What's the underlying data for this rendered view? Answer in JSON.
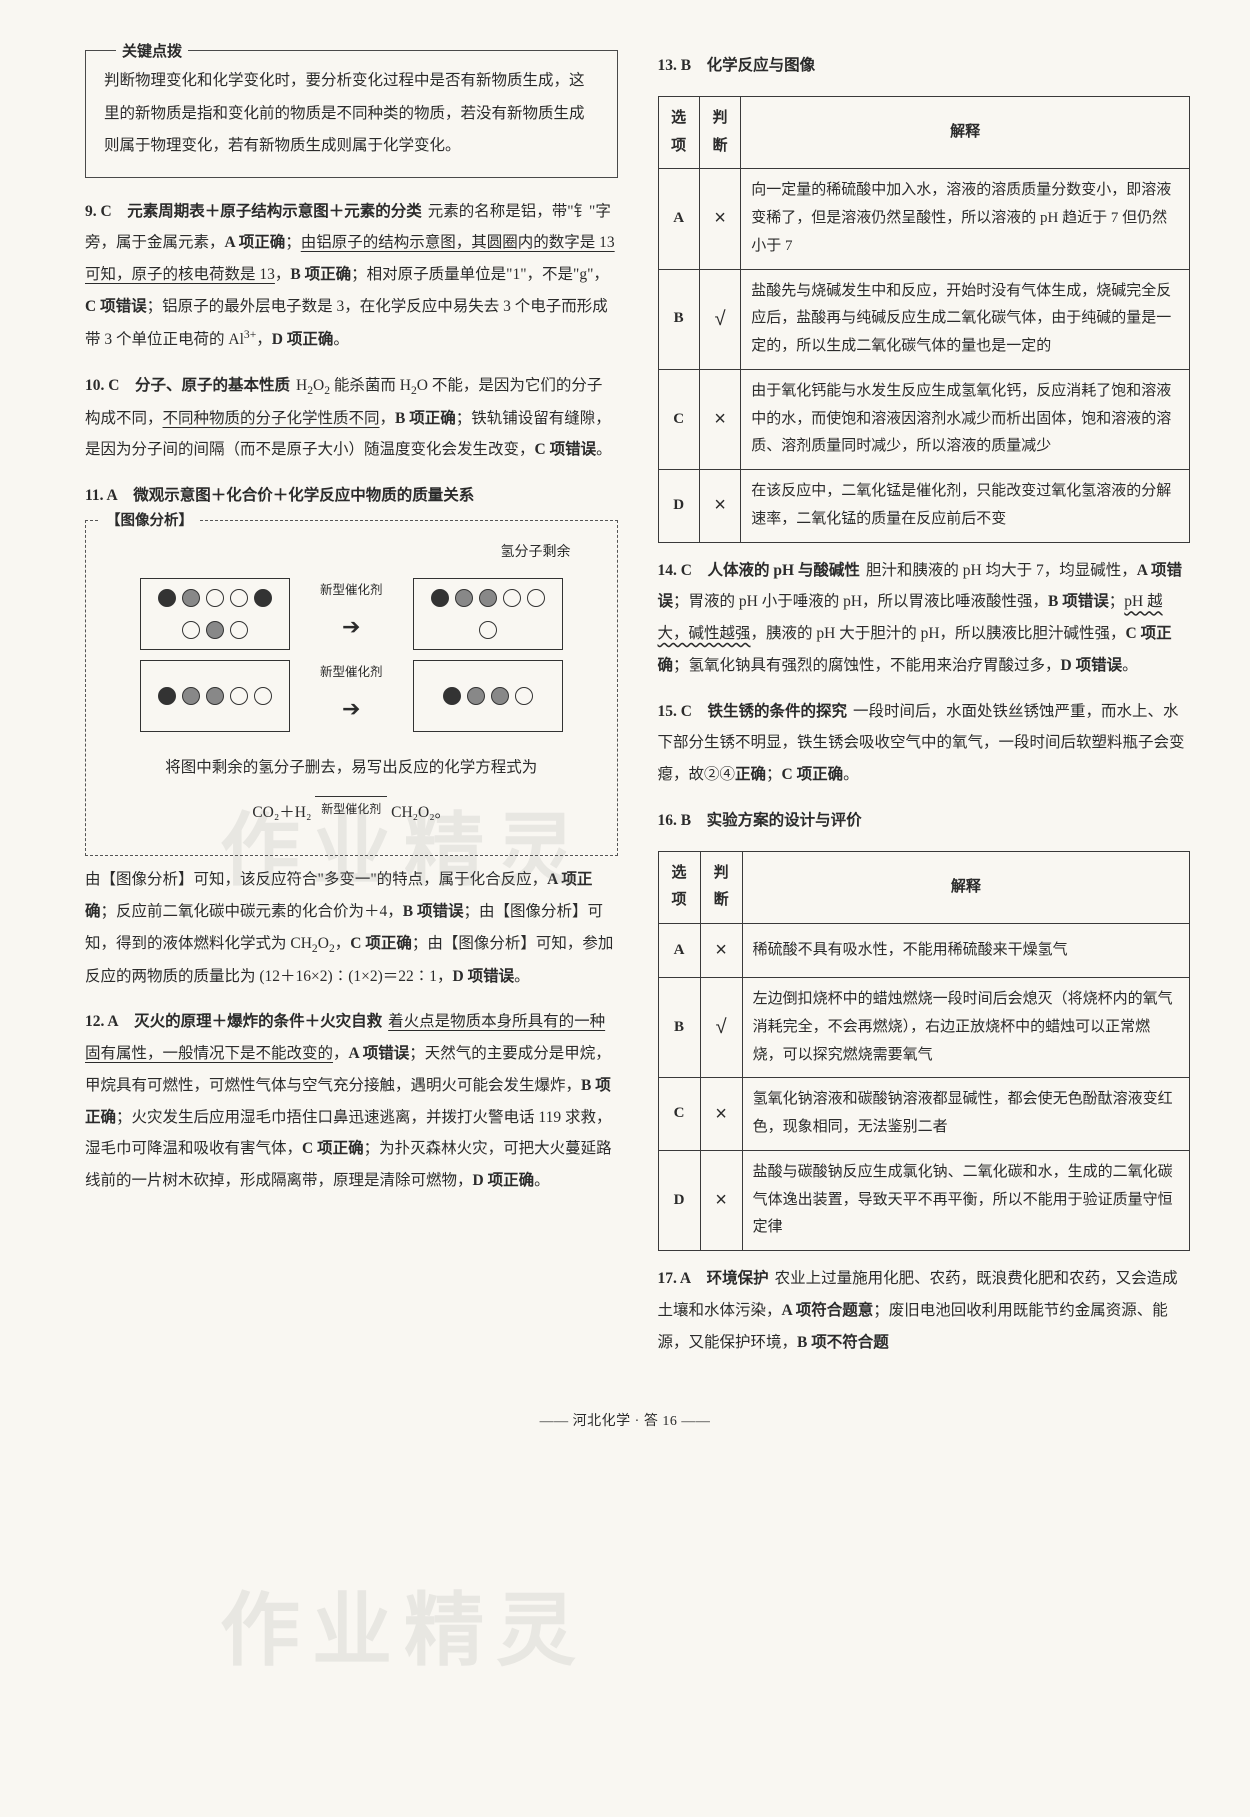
{
  "keybox": {
    "label": "关键点拨",
    "body": "判断物理变化和化学变化时，要分析变化过程中是否有新物质生成，这里的新物质是指和变化前的物质是不同种类的物质，若没有新物质生成则属于物理变化，若有新物质生成则属于化学变化。"
  },
  "left_items": [
    {
      "num": "9.",
      "ans": "C",
      "topic": "元素周期表＋原子结构示意图＋元素的分类",
      "body_html": "元素的名称是铝，带\"钅\"字旁，属于金属元素，<span class='bold'>A 项正确</span>；<span class='uline'>由铝原子的结构示意图，其圆圈内的数字是 13 可知，原子的核电荷数是 13</span>，<span class='bold'>B 项正确</span>；相对原子质量单位是\"1\"，不是\"g\"，<span class='bold'>C 项错误</span>；铝原子的最外层电子数是 3，在化学反应中易失去 3 个电子而形成带 3 个单位正电荷的 Al<span class='sup'>3+</span>，<span class='bold'>D 项正确</span>。"
    },
    {
      "num": "10.",
      "ans": "C",
      "topic": "分子、原子的基本性质",
      "body_html": "H<span class='sub'>2</span>O<span class='sub'>2</span> 能杀菌而 H<span class='sub'>2</span>O 不能，是因为它们的分子构成不同，<span class='uline'>不同种物质的分子化学性质不同</span>，<span class='bold'>B 项正确</span>；铁轨铺设留有缝隙，是因为分子间的间隔（而不是原子大小）随温度变化会发生改变，<span class='bold'>C 项错误</span>。"
    },
    {
      "num": "11.",
      "ans": "A",
      "topic": "微观示意图＋化合价＋化学反应中物质的质量关系",
      "analysis": {
        "label": "【图像分析】",
        "diagram": {
          "top_note": "氢分子剩余",
          "arrow_label": "新型催化剂",
          "bottom_text": "将图中剩余的氢分子删去，易写出反应的化学方程式为",
          "equation_left": "CO₂＋H₂",
          "equation_cond": "新型催化剂",
          "equation_right": "CH₂O₂。"
        }
      },
      "after_html": "由【图像分析】可知，该反应符合\"多变一\"的特点，属于化合反应，<span class='bold'>A 项正确</span>；反应前二氧化碳中碳元素的化合价为＋4，<span class='bold'>B 项错误</span>；由【图像分析】可知，得到的液体燃料化学式为 CH<span class='sub'>2</span>O<span class='sub'>2</span>，<span class='bold'>C 项正确</span>；由【图像分析】可知，参加反应的两物质的质量比为 (12＋16×2)∶(1×2)＝22∶1，<span class='bold'>D 项错误</span>。"
    },
    {
      "num": "12.",
      "ans": "A",
      "topic": "灭火的原理＋爆炸的条件＋火灾自救",
      "body_html": "<span class='uline'>着火点是物质本身所具有的一种固有属性，一般情况下是不能改变的</span>，<span class='bold'>A 项错误</span>；天然气的主要成分是甲烷，甲烷具有可燃性，可燃性气体与空气充分接触，遇明火可能会发生爆炸，<span class='bold'>B 项正确</span>；火灾发生后应用湿毛巾捂住口鼻迅速逃离，并拨打火警电话 119 求救，湿毛巾可降温和吸收有害气体，<span class='bold'>C 项正确</span>；为扑灭森林火灾，可把大火蔓延路线前的一片树木砍掉，形成隔离带，原理是清除可燃物，<span class='bold'>D 项正确</span>。"
    }
  ],
  "right_items_pre": [
    {
      "num": "13.",
      "ans": "B",
      "topic": "化学反应与图像"
    }
  ],
  "table13": {
    "cols": [
      "选项",
      "判断",
      "解释"
    ],
    "rows": [
      {
        "opt": "A",
        "mark": "×",
        "text": "向一定量的稀硫酸中加入水，溶液的溶质质量分数变小，即溶液变稀了，但是溶液仍然呈酸性，所以溶液的 pH 趋近于 7 但仍然小于 7"
      },
      {
        "opt": "B",
        "mark": "√",
        "text": "盐酸先与烧碱发生中和反应，开始时没有气体生成，烧碱完全反应后，盐酸再与纯碱反应生成二氧化碳气体，由于纯碱的量是一定的，所以生成二氧化碳气体的量也是一定的"
      },
      {
        "opt": "C",
        "mark": "×",
        "text": "由于氧化钙能与水发生反应生成氢氧化钙，反应消耗了饱和溶液中的水，而使饱和溶液因溶剂水减少而析出固体，饱和溶液的溶质、溶剂质量同时减少，所以溶液的质量减少"
      },
      {
        "opt": "D",
        "mark": "×",
        "text": "在该反应中，二氧化锰是催化剂，只能改变过氧化氢溶液的分解速率，二氧化锰的质量在反应前后不变"
      }
    ]
  },
  "right_items_mid": [
    {
      "num": "14.",
      "ans": "C",
      "topic": "人体液的 pH 与酸碱性",
      "body_html": "胆汁和胰液的 pH 均大于 7，均显碱性，<span class='bold'>A 项错误</span>；胃液的 pH 小于唾液的 pH，所以胃液比唾液酸性强，<span class='bold'>B 项错误</span>；<span class='wavyline'>pH 越大，碱性越强</span>，胰液的 pH 大于胆汁的 pH，所以胰液比胆汁碱性强，<span class='bold'>C 项正确</span>；氢氧化钠具有强烈的腐蚀性，不能用来治疗胃酸过多，<span class='bold'>D 项错误</span>。"
    },
    {
      "num": "15.",
      "ans": "C",
      "topic": "铁生锈的条件的探究",
      "body_html": "一段时间后，水面处铁丝锈蚀严重，而水上、水下部分生锈不明显，铁生锈会吸收空气中的氧气，一段时间后软塑料瓶子会变瘪，故②④<span class='bold'>正确</span>；<span class='bold'>C 项正确</span>。"
    },
    {
      "num": "16.",
      "ans": "B",
      "topic": "实验方案的设计与评价"
    }
  ],
  "table16": {
    "cols": [
      "选项",
      "判断",
      "解释"
    ],
    "rows": [
      {
        "opt": "A",
        "mark": "×",
        "text": "稀硫酸不具有吸水性，不能用稀硫酸来干燥氢气"
      },
      {
        "opt": "B",
        "mark": "√",
        "text": "左边倒扣烧杯中的蜡烛燃烧一段时间后会熄灭（将烧杯内的氧气消耗完全，不会再燃烧），右边正放烧杯中的蜡烛可以正常燃烧，可以探究燃烧需要氧气"
      },
      {
        "opt": "C",
        "mark": "×",
        "text": "氢氧化钠溶液和碳酸钠溶液都显碱性，都会使无色酚酞溶液变红色，现象相同，无法鉴别二者"
      },
      {
        "opt": "D",
        "mark": "×",
        "text": "盐酸与碳酸钠反应生成氯化钠、二氧化碳和水，生成的二氧化碳气体逸出装置，导致天平不再平衡，所以不能用于验证质量守恒定律"
      }
    ]
  },
  "right_items_post": [
    {
      "num": "17.",
      "ans": "A",
      "topic": "环境保护",
      "body_html": "农业上过量施用化肥、农药，既浪费化肥和农药，又会造成土壤和水体污染，<span class='bold'>A 项符合题意</span>；废旧电池回收利用既能节约金属资源、能源，又能保护环境，<span class='bold'>B 项不符合题"
    }
  ],
  "footer": "—— 河北化学 · 答 16 ——",
  "watermarks": [
    "作业精灵",
    "作业精灵"
  ]
}
